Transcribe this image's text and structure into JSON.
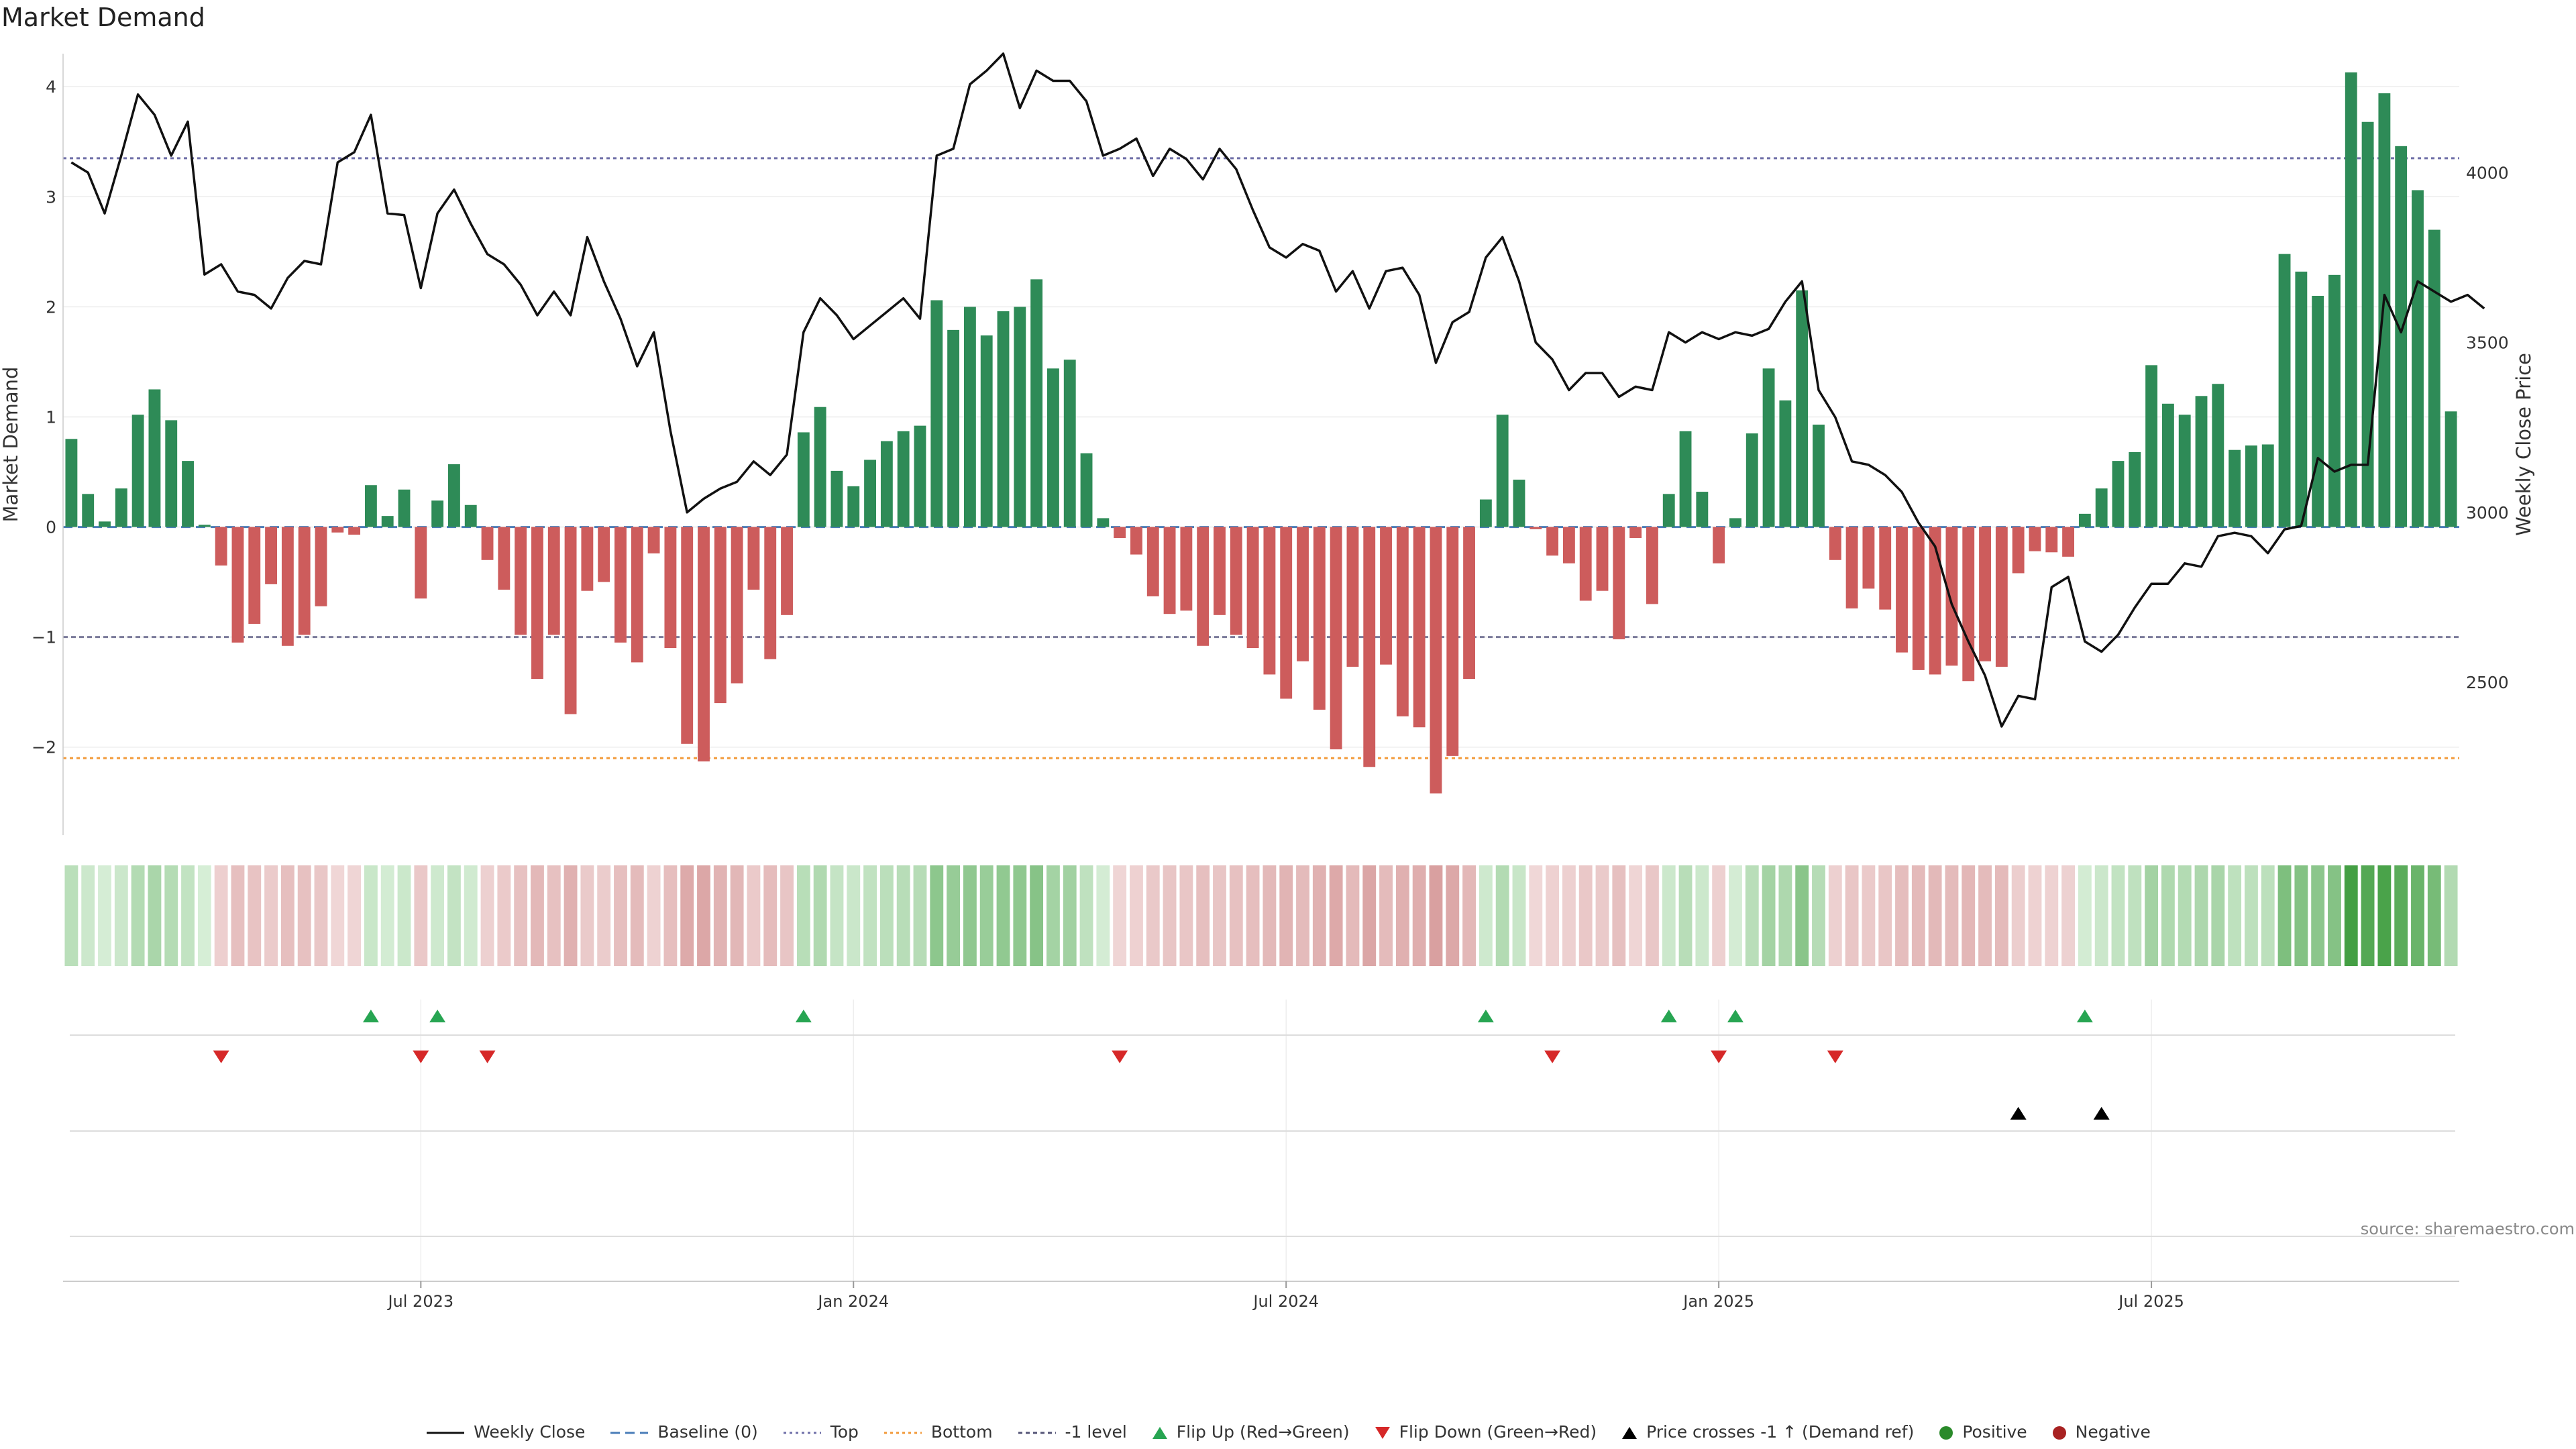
{
  "title": "Market Demand",
  "source": "source: sharemaestro.com",
  "colors": {
    "positive": "#2e8b57",
    "negative": "#cd5c5c",
    "price_line": "#111111",
    "top_line": "#6f6fa8",
    "bottom_line": "#f29a3a",
    "neg1_line": "#7a7a9a",
    "flip_up": "#27a552",
    "flip_down": "#d62828",
    "cross": "#000000"
  },
  "chart_data": {
    "type": "bar",
    "y_label": "Market Demand",
    "y2_label": "Weekly Close Price",
    "y_ticks": [
      4,
      3,
      2,
      1,
      0,
      -1,
      -2
    ],
    "y_tick_labels": [
      "4",
      "3",
      "2",
      "1",
      "0",
      "−1",
      "−2"
    ],
    "y_range": [
      -2.8,
      4.3
    ],
    "y2_ticks": [
      4000,
      3500,
      3000,
      2500
    ],
    "y2_range": [
      2050,
      4350
    ],
    "x_ticks": [
      {
        "index": 21,
        "label": "Jul 2023"
      },
      {
        "index": 47,
        "label": "Jan 2024"
      },
      {
        "index": 73,
        "label": "Jul 2024"
      },
      {
        "index": 99,
        "label": "Jan 2025"
      },
      {
        "index": 125,
        "label": "Jul 2025"
      }
    ],
    "reference_lines": {
      "top": 3.35,
      "bottom": -2.1,
      "neg1": -1,
      "baseline": 0
    },
    "demand": [
      0.8,
      0.3,
      0.05,
      0.35,
      1.02,
      1.25,
      0.97,
      0.6,
      0.02,
      -0.35,
      -1.05,
      -0.88,
      -0.52,
      -1.08,
      -0.98,
      -0.72,
      -0.05,
      -0.07,
      0.38,
      0.1,
      0.34,
      -0.65,
      0.24,
      0.57,
      0.2,
      -0.3,
      -0.57,
      -0.98,
      -1.38,
      -0.98,
      -1.7,
      -0.58,
      -0.5,
      -1.05,
      -1.23,
      -0.24,
      -1.1,
      -1.97,
      -2.13,
      -1.6,
      -1.42,
      -0.57,
      -1.2,
      -0.8,
      0.86,
      1.09,
      0.51,
      0.37,
      0.61,
      0.78,
      0.87,
      0.92,
      2.06,
      1.79,
      2.0,
      1.74,
      1.96,
      2.0,
      2.25,
      1.44,
      1.52,
      0.67,
      0.08,
      -0.1,
      -0.25,
      -0.63,
      -0.79,
      -0.76,
      -1.08,
      -0.8,
      -0.98,
      -1.1,
      -1.34,
      -1.56,
      -1.22,
      -1.66,
      -2.02,
      -1.27,
      -2.18,
      -1.25,
      -1.72,
      -1.82,
      -2.42,
      -2.08,
      -1.38,
      0.25,
      1.02,
      0.43,
      -0.02,
      -0.26,
      -0.33,
      -0.67,
      -0.58,
      -1.02,
      -0.1,
      -0.7,
      0.3,
      0.87,
      0.32,
      -0.33,
      0.08,
      0.85,
      1.44,
      1.15,
      2.15,
      0.93,
      -0.3,
      -0.74,
      -0.56,
      -0.75,
      -1.14,
      -1.3,
      -1.34,
      -1.26,
      -1.4,
      -1.22,
      -1.27,
      -0.42,
      -0.22,
      -0.23,
      -0.27,
      0.12,
      0.35,
      0.6,
      0.68,
      1.47,
      1.12,
      1.02,
      1.19,
      1.3,
      0.7,
      0.74,
      0.75,
      2.48,
      2.32,
      2.1,
      2.29,
      4.13,
      3.68,
      3.94,
      3.46,
      3.06,
      2.7,
      1.05
    ],
    "price": [
      4030,
      4000,
      3880,
      4050,
      4230,
      4170,
      4050,
      4150,
      3700,
      3730,
      3650,
      3640,
      3600,
      3690,
      3740,
      3730,
      4030,
      4060,
      4170,
      3880,
      3875,
      3660,
      3880,
      3950,
      3850,
      3760,
      3730,
      3670,
      3580,
      3650,
      3580,
      3810,
      3680,
      3570,
      3430,
      3530,
      3240,
      3000,
      3040,
      3070,
      3090,
      3150,
      3110,
      3170,
      3530,
      3630,
      3580,
      3510,
      3550,
      3590,
      3630,
      3570,
      4050,
      4070,
      4260,
      4300,
      4350,
      4190,
      4300,
      4270,
      4270,
      4210,
      4050,
      4070,
      4100,
      3990,
      4070,
      4040,
      3980,
      4070,
      4010,
      3890,
      3780,
      3750,
      3790,
      3770,
      3650,
      3710,
      3600,
      3710,
      3720,
      3640,
      3440,
      3560,
      3590,
      3750,
      3810,
      3680,
      3500,
      3450,
      3360,
      3410,
      3410,
      3340,
      3370,
      3360,
      3530,
      3500,
      3530,
      3510,
      3530,
      3520,
      3540,
      3620,
      3680,
      3360,
      3280,
      3150,
      3140,
      3110,
      3060,
      2970,
      2900,
      2730,
      2620,
      2520,
      2370,
      2460,
      2450,
      2780,
      2810,
      2620,
      2590,
      2640,
      2720,
      2790,
      2790,
      2850,
      2840,
      2930,
      2940,
      2930,
      2880,
      2950,
      2960,
      3160,
      3120,
      3140,
      3140,
      3640,
      3530,
      3680,
      3650,
      3620,
      3640,
      3600
    ],
    "flip_up": [
      18,
      22,
      44,
      85,
      96,
      100,
      121
    ],
    "flip_down": [
      9,
      21,
      25,
      63,
      89,
      99,
      106
    ],
    "price_cross_up": [
      117,
      122
    ],
    "legend": [
      "Weekly Close",
      "Baseline (0)",
      "Top",
      "Bottom",
      "-1 level",
      "Flip Up (Red→Green)",
      "Flip Down (Green→Red)",
      "Price crosses -1 ↑ (Demand ref)",
      "Positive",
      "Negative"
    ]
  }
}
